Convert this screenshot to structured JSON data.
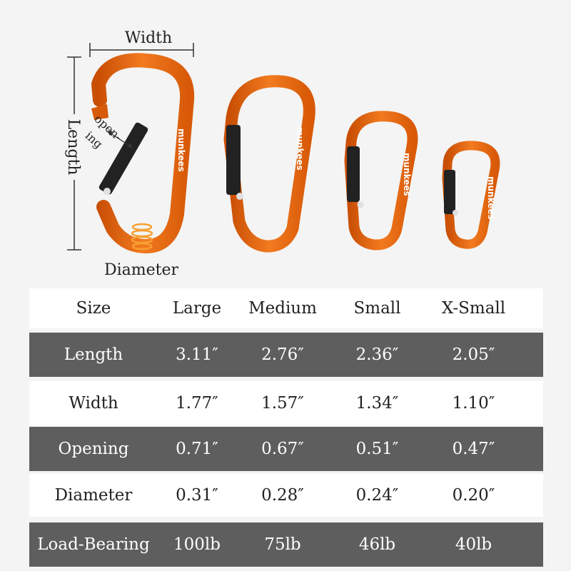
{
  "illustration": {
    "labels": {
      "width": "Width",
      "length": "Length",
      "opening_line1": "open-",
      "opening_line2": "ing",
      "diameter": "Diameter"
    },
    "brand_text": "munkees",
    "colors": {
      "carabiner": "#e8660f",
      "gate": "#222222",
      "dark_row": "#5e5e5e"
    }
  },
  "table": {
    "header": [
      "Size",
      "Large",
      "Medium",
      "Small",
      "X-Small"
    ],
    "rows": [
      [
        "Length",
        "3.11″",
        "2.76″",
        "2.36″",
        "2.05″"
      ],
      [
        "Width",
        "1.77″",
        "1.57″",
        "1.34″",
        "1.10″"
      ],
      [
        "Opening",
        "0.71″",
        "0.67″",
        "0.51″",
        "0.47″"
      ],
      [
        "Diameter",
        "0.31″",
        "0.28″",
        "0.24″",
        "0.20″"
      ],
      [
        "Load-Bearing",
        "100lb",
        "75lb",
        "46lb",
        "40lb"
      ]
    ]
  }
}
